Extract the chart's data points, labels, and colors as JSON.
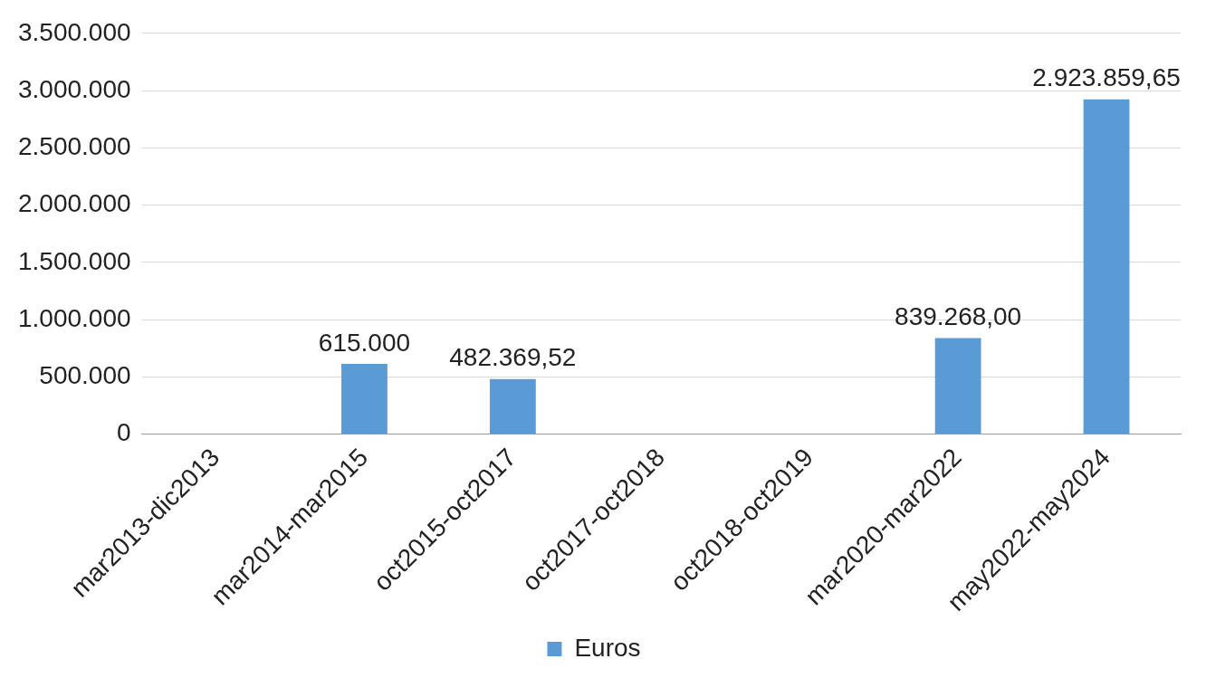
{
  "chart_data": {
    "type": "bar",
    "categories": [
      "mar2013-dic2013",
      "mar2014-mar2015",
      "oct2015-oct2017",
      "oct2017-oct2018",
      "oct2018-oct2019",
      "mar2020-mar2022",
      "may2022-may2024"
    ],
    "series": [
      {
        "name": "Euros",
        "color": "#5b9bd5",
        "values": [
          null,
          615000,
          482369.52,
          null,
          null,
          839268,
          2923859.65
        ],
        "value_labels": [
          null,
          "615.000",
          "482.369,52",
          null,
          null,
          "839.268,00",
          "2.923.859,65"
        ]
      }
    ],
    "ylim": [
      0,
      3500000
    ],
    "yticks": [
      {
        "value": 0,
        "label": "0"
      },
      {
        "value": 500000,
        "label": "500.000"
      },
      {
        "value": 1000000,
        "label": "1.000.000"
      },
      {
        "value": 1500000,
        "label": "1.500.000"
      },
      {
        "value": 2000000,
        "label": "2.000.000"
      },
      {
        "value": 2500000,
        "label": "2.500.000"
      },
      {
        "value": 3000000,
        "label": "3.000.000"
      },
      {
        "value": 3500000,
        "label": "3.500.000"
      }
    ],
    "grid": "y",
    "legend": "bottom"
  }
}
